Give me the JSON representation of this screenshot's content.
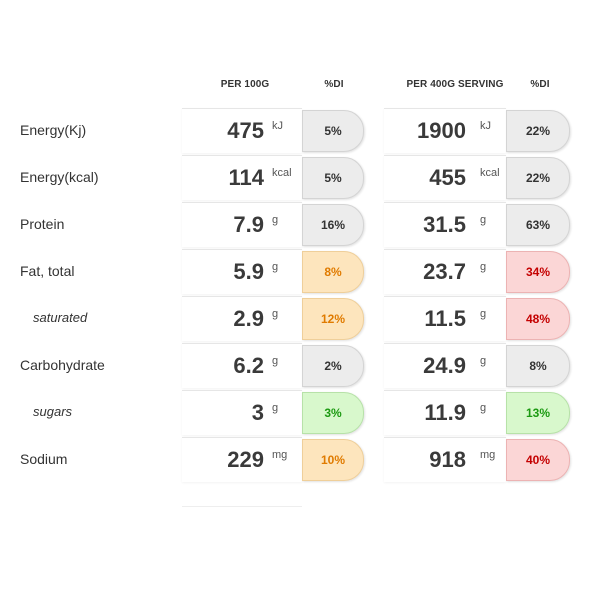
{
  "headers": {
    "per100g": "PER 100G",
    "di_a": "%DI",
    "per_serving": "PER 400G SERVING",
    "di_b": "%DI"
  },
  "status_colors": {
    "grey": "#ececec",
    "orange": "#fde5bd",
    "red": "#fbd6d6",
    "green": "#d8f8cc"
  },
  "rows": [
    {
      "label": "Energy(Kj)",
      "v100": "475",
      "u100": "kJ",
      "di100": "5%",
      "c100": "grey",
      "vserv": "1900",
      "userv": "kJ",
      "diserv": "22%",
      "cserv": "grey"
    },
    {
      "label": "Energy(kcal)",
      "v100": "114",
      "u100": "kcal",
      "di100": "5%",
      "c100": "grey",
      "vserv": "455",
      "userv": "kcal",
      "diserv": "22%",
      "cserv": "grey"
    },
    {
      "label": "Protein",
      "v100": "7.9",
      "u100": "g",
      "di100": "16%",
      "c100": "grey",
      "vserv": "31.5",
      "userv": "g",
      "diserv": "63%",
      "cserv": "grey"
    },
    {
      "label": "Fat, total",
      "v100": "5.9",
      "u100": "g",
      "di100": "8%",
      "c100": "orange",
      "vserv": "23.7",
      "userv": "g",
      "diserv": "34%",
      "cserv": "red"
    },
    {
      "label": "saturated",
      "v100": "2.9",
      "u100": "g",
      "di100": "12%",
      "c100": "orange",
      "vserv": "11.5",
      "userv": "g",
      "diserv": "48%",
      "cserv": "red"
    },
    {
      "label": "Carbohydrate",
      "v100": "6.2",
      "u100": "g",
      "di100": "2%",
      "c100": "grey",
      "vserv": "24.9",
      "userv": "g",
      "diserv": "8%",
      "cserv": "grey"
    },
    {
      "label": "sugars",
      "v100": "3",
      "u100": "g",
      "di100": "3%",
      "c100": "green",
      "vserv": "11.9",
      "userv": "g",
      "diserv": "13%",
      "cserv": "green"
    },
    {
      "label": "Sodium",
      "v100": "229",
      "u100": "mg",
      "di100": "10%",
      "c100": "orange",
      "vserv": "918",
      "userv": "mg",
      "diserv": "40%",
      "cserv": "red"
    }
  ]
}
